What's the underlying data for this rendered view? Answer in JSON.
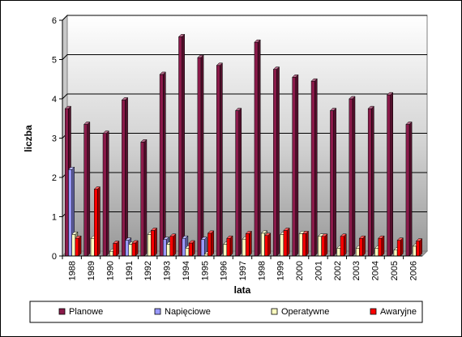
{
  "chart_data": {
    "type": "bar",
    "xlabel": "lata",
    "ylabel": "liczba",
    "ylim": [
      0,
      6
    ],
    "yticks": [
      0,
      1,
      2,
      3,
      4,
      5,
      6
    ],
    "grid": true,
    "legend_position": "bottom",
    "categories": [
      "1988",
      "1989",
      "1990",
      "1991",
      "1992",
      "1993",
      "1994",
      "1995",
      "1996",
      "1997",
      "1998",
      "1999",
      "2000",
      "2001",
      "2002",
      "2003",
      "2004",
      "2005",
      "2006"
    ],
    "series": [
      {
        "name": "Planowe",
        "color": "#8b1a4a",
        "values": [
          3.75,
          3.35,
          3.12,
          3.97,
          2.9,
          4.62,
          5.58,
          5.05,
          4.85,
          3.7,
          5.44,
          4.75,
          4.55,
          4.45,
          3.7,
          4.0,
          3.75,
          4.1,
          3.35
        ]
      },
      {
        "name": "Napięciowe",
        "color": "#9999ff",
        "values": [
          2.2,
          0.0,
          0.0,
          0.4,
          0.0,
          0.42,
          0.45,
          0.42,
          0.0,
          0.0,
          0.0,
          0.0,
          0.0,
          0.0,
          0.0,
          0.0,
          0.0,
          0.0,
          0.0
        ]
      },
      {
        "name": "Operatywne",
        "color": "#ffffc0",
        "values": [
          0.55,
          0.45,
          0.12,
          0.3,
          0.55,
          0.3,
          0.2,
          0.05,
          0.3,
          0.43,
          0.58,
          0.55,
          0.57,
          0.5,
          0.2,
          0.2,
          0.2,
          0.15,
          0.25
        ]
      },
      {
        "name": "Awaryjne",
        "color": "#ff0000",
        "values": [
          0.45,
          1.7,
          0.32,
          0.33,
          0.65,
          0.5,
          0.33,
          0.58,
          0.45,
          0.57,
          0.52,
          0.65,
          0.57,
          0.5,
          0.5,
          0.45,
          0.45,
          0.4,
          0.38
        ]
      }
    ]
  }
}
